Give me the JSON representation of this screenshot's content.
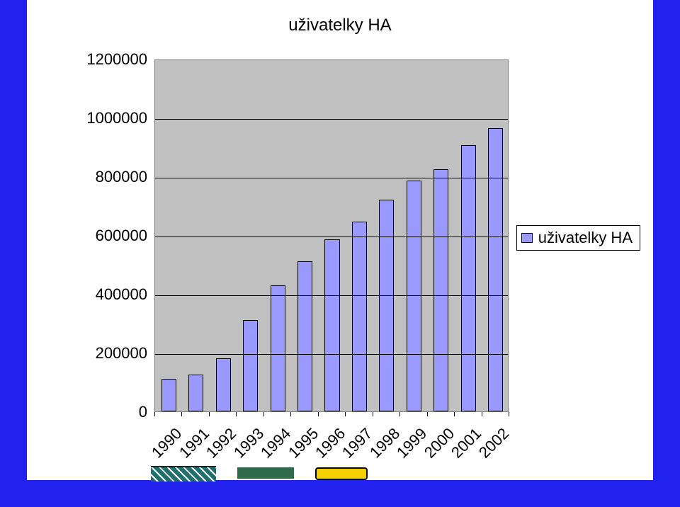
{
  "chart": {
    "type": "bar",
    "title": "uživatelky HA",
    "title_fontsize": 24,
    "title_color": "#000000",
    "background_color": "#ffffff",
    "frame_color": "#2222ee",
    "plot_bgcolor": "#c0c0c0",
    "grid_color": "#000000",
    "axis_color": "#7f7f7f",
    "label_fontsize": 22,
    "label_color": "#000000",
    "ylim": [
      0,
      1200000
    ],
    "ytick_step": 200000,
    "yticks": [
      0,
      200000,
      400000,
      600000,
      800000,
      1000000,
      1200000
    ],
    "categories": [
      "1990",
      "1991",
      "1992",
      "1993",
      "1994",
      "1995",
      "1996",
      "1997",
      "1998",
      "1999",
      "2000",
      "2001",
      "2002"
    ],
    "values": [
      110000,
      125000,
      180000,
      310000,
      430000,
      510000,
      585000,
      645000,
      720000,
      785000,
      825000,
      905000,
      965000
    ],
    "bar_colors": [
      "#9999ff",
      "#9999ff",
      "#9999ff",
      "#9999ff",
      "#9999ff",
      "#9999ff",
      "#9999ff",
      "#9999ff",
      "#9999ff",
      "#9999ff",
      "#9999ff",
      "#9999ff",
      "#9999ff"
    ],
    "bar_border_color": "#000000",
    "bar_width": 0.55,
    "xlabel_rotation_deg": -45,
    "legend": {
      "position": "right-middle",
      "label": "uživatelky HA",
      "swatch_color": "#9999ff",
      "border_color": "#000000",
      "background_color": "#ffffff"
    }
  }
}
